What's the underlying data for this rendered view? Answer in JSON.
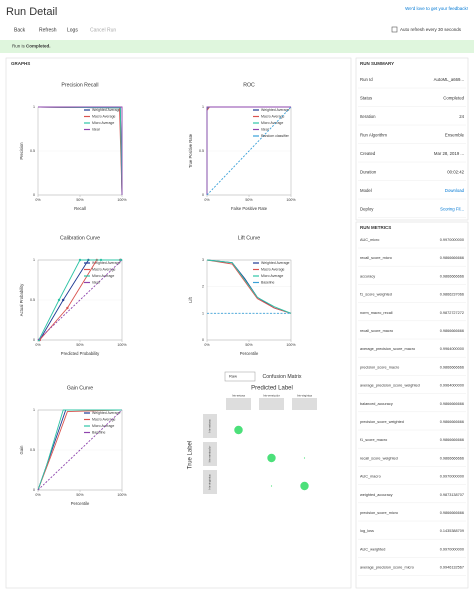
{
  "header": {
    "title": "Run Detail",
    "feedback": "We'd love to get your feedback!"
  },
  "toolbar": {
    "back": "Back",
    "refresh": "Refresh",
    "logs": "Logs",
    "cancel": "Cancel Run",
    "auto_refresh": "Auto refresh every 30 seconds"
  },
  "banner": {
    "prefix": "Run is",
    "status": "Completed."
  },
  "graphs": {
    "title": "GRAPHS",
    "charts": [
      {
        "type": "line",
        "title": "Precision Recall",
        "xlabel": "Recall",
        "ylabel": "Precision",
        "xlim": [
          0,
          1
        ],
        "ylim": [
          0,
          1
        ],
        "xticks": [
          {
            "value": 0,
            "label": "0%"
          },
          {
            "value": 0.5,
            "label": "50%"
          },
          {
            "value": 1,
            "label": "100%"
          }
        ],
        "yticks": [
          0,
          0.5,
          1
        ],
        "series": [
          {
            "name": "Weighted Average",
            "color": "#1f3a93",
            "x": [
              0,
              0.02,
              0.98,
              1
            ],
            "y": [
              1,
              1,
              0.99,
              0
            ]
          },
          {
            "name": "Macro Average",
            "color": "#d9534f",
            "x": [
              0,
              0.02,
              0.97,
              1
            ],
            "y": [
              1,
              1,
              0.99,
              0
            ]
          },
          {
            "name": "Micro Average",
            "color": "#2ec4a6",
            "x": [
              0,
              0.03,
              0.98,
              1
            ],
            "y": [
              1,
              1,
              0.99,
              0
            ]
          },
          {
            "name": "Ideal",
            "color": "#8e44ad",
            "x": [
              0,
              1,
              1
            ],
            "y": [
              1,
              1,
              0
            ]
          }
        ]
      },
      {
        "type": "line",
        "title": "ROC",
        "xlabel": "False Positive Rate",
        "ylabel": "True Positive Rate",
        "xlim": [
          0,
          1
        ],
        "ylim": [
          0,
          1
        ],
        "xticks": [
          {
            "value": 0,
            "label": "0%"
          },
          {
            "value": 0.5,
            "label": "50%"
          },
          {
            "value": 1,
            "label": "100%"
          }
        ],
        "yticks": [
          0,
          0.5,
          1
        ],
        "series": [
          {
            "name": "Weighted Average",
            "color": "#1f3a93",
            "x": [
              0,
              0,
              0.02,
              1
            ],
            "y": [
              0,
              0.97,
              1,
              1
            ]
          },
          {
            "name": "Macro Average",
            "color": "#d9534f",
            "x": [
              0,
              0,
              0.03,
              1
            ],
            "y": [
              0,
              0.96,
              1,
              1
            ]
          },
          {
            "name": "Micro Average",
            "color": "#2ec4a6",
            "x": [
              0,
              0,
              0.02,
              1
            ],
            "y": [
              0,
              0.98,
              1,
              1
            ]
          },
          {
            "name": "Ideal",
            "color": "#8e44ad",
            "x": [
              0,
              0,
              1
            ],
            "y": [
              0,
              1,
              1
            ]
          },
          {
            "name": "Random classifier",
            "color": "#3aa0d8",
            "x": [
              0,
              1
            ],
            "y": [
              0,
              1
            ],
            "dash": true
          }
        ]
      },
      {
        "type": "line",
        "title": "Calibration Curve",
        "xlabel": "Predicted Probability",
        "ylabel": "Actual Probability",
        "xlim": [
          0,
          1
        ],
        "ylim": [
          0,
          1
        ],
        "xticks": [
          {
            "value": 0,
            "label": "0%"
          },
          {
            "value": 0.5,
            "label": "50%"
          },
          {
            "value": 1,
            "label": "100%"
          }
        ],
        "yticks": [
          0,
          0.5,
          1
        ],
        "series": [
          {
            "name": "Weighted Average",
            "color": "#1f3a93",
            "x": [
              0.02,
              0.3,
              0.6,
              0.98
            ],
            "y": [
              0,
              0.5,
              1,
              1
            ],
            "markers": true
          },
          {
            "name": "Macro Average",
            "color": "#d9534f",
            "x": [
              0.02,
              0.35,
              0.7,
              0.98
            ],
            "y": [
              0,
              0.4,
              1,
              1
            ],
            "markers": true
          },
          {
            "name": "Micro Average",
            "color": "#2ec4a6",
            "x": [
              0.01,
              0.25,
              0.5,
              0.75,
              0.99
            ],
            "y": [
              0,
              0.5,
              1,
              1,
              1
            ],
            "markers": true
          },
          {
            "name": "Ideal",
            "color": "#8e44ad",
            "x": [
              0,
              1
            ],
            "y": [
              0,
              1
            ],
            "dash": true
          }
        ]
      },
      {
        "type": "line",
        "title": "Lift Curve",
        "xlabel": "Percentile",
        "ylabel": "Lift",
        "xlim": [
          0,
          1
        ],
        "ylim": [
          0,
          3
        ],
        "xticks": [
          {
            "value": 0,
            "label": "0%"
          },
          {
            "value": 0.5,
            "label": "50%"
          },
          {
            "value": 1,
            "label": "100%"
          }
        ],
        "yticks": [
          0,
          1,
          2,
          3
        ],
        "series": [
          {
            "name": "Weighted Average",
            "color": "#1f3a93",
            "x": [
              0,
              0.3,
              0.45,
              0.6,
              0.8,
              1
            ],
            "y": [
              3,
              2.9,
              2.3,
              1.6,
              1.2,
              1
            ]
          },
          {
            "name": "Macro Average",
            "color": "#d9534f",
            "x": [
              0,
              0.3,
              0.45,
              0.6,
              0.8,
              1
            ],
            "y": [
              3,
              2.85,
              2.2,
              1.55,
              1.2,
              1
            ]
          },
          {
            "name": "Micro Average",
            "color": "#2ec4a6",
            "x": [
              0,
              0.3,
              0.45,
              0.6,
              0.8,
              1
            ],
            "y": [
              3,
              2.9,
              2.25,
              1.6,
              1.25,
              1
            ]
          },
          {
            "name": "Baseline",
            "color": "#3aa0d8",
            "x": [
              0,
              1
            ],
            "y": [
              1,
              1
            ],
            "dash": true
          }
        ]
      },
      {
        "type": "line",
        "title": "Gain Curve",
        "xlabel": "Percentile",
        "ylabel": "Gain",
        "xlim": [
          0,
          1
        ],
        "ylim": [
          0,
          1
        ],
        "xticks": [
          {
            "value": 0,
            "label": "0%"
          },
          {
            "value": 0.5,
            "label": "50%"
          },
          {
            "value": 1,
            "label": "100%"
          }
        ],
        "yticks": [
          0,
          0.5,
          1
        ],
        "series": [
          {
            "name": "Weighted Average",
            "color": "#1f3a93",
            "x": [
              0,
              0.15,
              0.33,
              1
            ],
            "y": [
              0,
              0.45,
              1,
              1
            ]
          },
          {
            "name": "Macro Average",
            "color": "#d9534f",
            "x": [
              0,
              0.2,
              0.35,
              1
            ],
            "y": [
              0,
              0.55,
              0.98,
              1
            ]
          },
          {
            "name": "Micro Average",
            "color": "#2ec4a6",
            "x": [
              0,
              0.1,
              0.3,
              1
            ],
            "y": [
              0,
              0.3,
              1,
              1
            ]
          },
          {
            "name": "Baseline",
            "color": "#8e44ad",
            "x": [
              0,
              1
            ],
            "y": [
              0,
              1
            ],
            "dash": true
          }
        ]
      }
    ],
    "confusion": {
      "title": "Confusion Matrix",
      "dropdown": "Raw",
      "xlabel": "Predicted Label",
      "ylabel": "True Label",
      "classes": [
        "Iris-setosa",
        "Iris-versicolor",
        "Iris-virginica"
      ],
      "values": [
        [
          50,
          0,
          0
        ],
        [
          0,
          49,
          1
        ],
        [
          0,
          1,
          49
        ]
      ]
    }
  },
  "summary": {
    "title": "RUN SUMMARY",
    "rows": [
      [
        "Run Id",
        "AutoML_a669..."
      ],
      [
        "Status",
        "Completed"
      ],
      [
        "Iteration",
        24
      ],
      [
        "Run Algorithm",
        "Ensemble"
      ],
      [
        "Created",
        "Mar 28, 2019 ..."
      ],
      [
        "Duration",
        "00:02:42"
      ],
      [
        "Model",
        "Download"
      ],
      [
        "Deploy",
        "Scoring Fil..."
      ]
    ]
  },
  "metrics": {
    "title": "RUN METRICS",
    "rows": [
      [
        "AUC_micro",
        "0.9970000000"
      ],
      [
        "recall_score_micro",
        "0.9866666666"
      ],
      [
        "accuracy",
        "0.9866666666"
      ],
      [
        "f1_score_weighted",
        "0.9866237066"
      ],
      [
        "norm_macro_recall",
        "0.9872727272"
      ],
      [
        "recall_score_macro",
        "0.9866666666"
      ],
      [
        "average_precision_score_macro",
        "0.9964000000"
      ],
      [
        "precision_score_macro",
        "0.9866666666"
      ],
      [
        "average_precision_score_weighted",
        "0.9964000000"
      ],
      [
        "balanced_accuracy",
        "0.9866666666"
      ],
      [
        "precision_score_weighted",
        "0.9866666666"
      ],
      [
        "f1_score_macro",
        "0.9866666666"
      ],
      [
        "recall_score_weighted",
        "0.9866666666"
      ],
      [
        "AUC_macro",
        "0.9970000000"
      ],
      [
        "weighted_accuracy",
        "0.9873138707"
      ],
      [
        "precision_score_micro",
        "0.9866666666"
      ],
      [
        "log_loss",
        "0.1435388709"
      ],
      [
        "AUC_weighted",
        "0.9970000000"
      ],
      [
        "average_precision_score_micro",
        "0.9946132567"
      ]
    ]
  }
}
